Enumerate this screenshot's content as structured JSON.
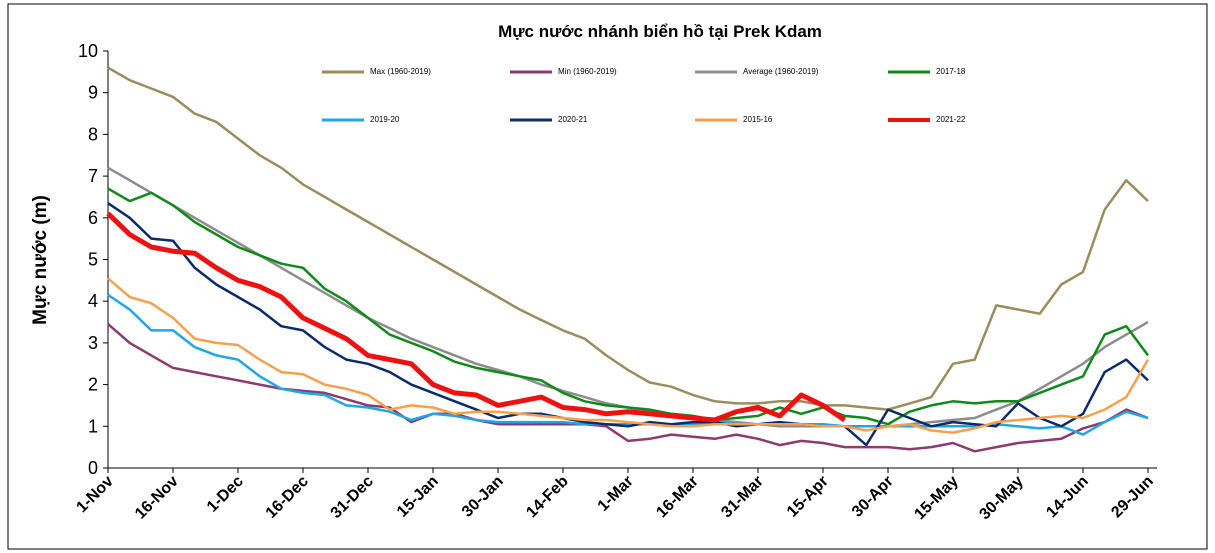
{
  "chart_data": {
    "type": "line",
    "title": "Mực nước nhánh biển hồ tại Prek Kdam",
    "y_label": "Mực nước (m)",
    "categories": [
      "1-Nov",
      null,
      null,
      "16-Nov",
      null,
      null,
      "1-Dec",
      null,
      null,
      "16-Dec",
      null,
      null,
      "31-Dec",
      null,
      null,
      "15-Jan",
      null,
      null,
      "30-Jan",
      null,
      null,
      "14-Feb",
      null,
      null,
      "1-Mar",
      null,
      null,
      "16-Mar",
      null,
      null,
      "31-Mar",
      null,
      null,
      "15-Apr",
      null,
      null,
      "30-Apr",
      null,
      null,
      "15-May",
      null,
      null,
      "30-May",
      null,
      null,
      "14-Jun",
      null,
      null,
      "29-Jun"
    ],
    "ylim": [
      0,
      10
    ],
    "yticks": [
      0,
      1,
      2,
      3,
      4,
      5,
      6,
      7,
      8,
      9,
      10
    ],
    "grid": false,
    "series": [
      {
        "name": "Max (1960-2019)",
        "color": "#9b8d5c",
        "values": [
          9.6,
          9.3,
          9.1,
          8.9,
          8.5,
          8.3,
          7.9,
          7.5,
          7.2,
          6.8,
          6.5,
          6.2,
          5.9,
          5.6,
          5.3,
          5.0,
          4.7,
          4.4,
          4.1,
          3.8,
          3.55,
          3.3,
          3.1,
          2.7,
          2.35,
          2.05,
          1.95,
          1.75,
          1.6,
          1.55,
          1.55,
          1.6,
          1.6,
          1.5,
          1.5,
          1.45,
          1.4,
          1.55,
          1.7,
          2.5,
          2.6,
          3.9,
          3.8,
          3.7,
          4.4,
          4.7,
          6.2,
          6.9,
          6.4
        ]
      },
      {
        "name": "Min (1960-2019)",
        "color": "#8e3a6e",
        "values": [
          3.45,
          3.0,
          2.7,
          2.4,
          2.3,
          2.2,
          2.1,
          2.0,
          1.9,
          1.85,
          1.8,
          1.65,
          1.5,
          1.45,
          1.1,
          1.3,
          1.3,
          1.15,
          1.05,
          1.05,
          1.05,
          1.05,
          1.05,
          1.0,
          0.65,
          0.7,
          0.8,
          0.75,
          0.7,
          0.8,
          0.7,
          0.55,
          0.65,
          0.6,
          0.5,
          0.5,
          0.5,
          0.45,
          0.5,
          0.6,
          0.4,
          0.5,
          0.6,
          0.65,
          0.7,
          0.95,
          1.1,
          1.4,
          1.2
        ]
      },
      {
        "name": "Average (1960-2019)",
        "color": "#8c8c8c",
        "values": [
          7.2,
          6.9,
          6.6,
          6.3,
          6.0,
          5.7,
          5.4,
          5.1,
          4.8,
          4.5,
          4.2,
          3.9,
          3.6,
          3.35,
          3.1,
          2.9,
          2.7,
          2.5,
          2.35,
          2.2,
          2.0,
          1.85,
          1.7,
          1.55,
          1.45,
          1.35,
          1.25,
          1.2,
          1.15,
          1.1,
          1.05,
          1.0,
          1.0,
          1.0,
          1.0,
          1.0,
          1.0,
          1.05,
          1.1,
          1.15,
          1.2,
          1.4,
          1.6,
          1.9,
          2.2,
          2.5,
          2.9,
          3.2,
          3.5
        ]
      },
      {
        "name": "2017-18",
        "color": "#108a1a",
        "values": [
          6.7,
          6.4,
          6.6,
          6.3,
          5.9,
          5.6,
          5.3,
          5.1,
          4.9,
          4.8,
          4.3,
          4.0,
          3.6,
          3.2,
          3.0,
          2.8,
          2.55,
          2.4,
          2.3,
          2.2,
          2.1,
          1.8,
          1.6,
          1.5,
          1.45,
          1.4,
          1.3,
          1.25,
          1.15,
          1.2,
          1.25,
          1.45,
          1.3,
          1.45,
          1.25,
          1.2,
          1.05,
          1.35,
          1.5,
          1.6,
          1.55,
          1.6,
          1.6,
          1.8,
          2.0,
          2.2,
          3.2,
          3.4,
          2.7
        ]
      },
      {
        "name": "2019-20",
        "color": "#1ea7e6",
        "values": [
          4.15,
          3.8,
          3.3,
          3.3,
          2.9,
          2.7,
          2.6,
          2.2,
          1.9,
          1.8,
          1.75,
          1.5,
          1.45,
          1.35,
          1.15,
          1.3,
          1.25,
          1.15,
          1.1,
          1.1,
          1.1,
          1.1,
          1.05,
          1.05,
          1.05,
          1.05,
          1.05,
          1.05,
          1.1,
          1.05,
          1.05,
          1.05,
          1.05,
          1.05,
          1.0,
          1.0,
          1.0,
          1.0,
          1.0,
          1.0,
          1.0,
          1.05,
          1.0,
          0.95,
          1.0,
          0.8,
          1.1,
          1.35,
          1.2
        ]
      },
      {
        "name": "2020-21",
        "color": "#0c2a6e",
        "values": [
          6.35,
          6.0,
          5.5,
          5.45,
          4.8,
          4.4,
          4.1,
          3.8,
          3.4,
          3.3,
          2.9,
          2.6,
          2.5,
          2.3,
          2.0,
          1.8,
          1.6,
          1.4,
          1.2,
          1.3,
          1.3,
          1.2,
          1.1,
          1.05,
          1.0,
          1.1,
          1.05,
          1.1,
          1.1,
          1.0,
          1.05,
          1.1,
          1.05,
          1.0,
          1.0,
          0.55,
          1.4,
          1.2,
          1.0,
          1.1,
          1.05,
          1.0,
          1.55,
          1.2,
          1.0,
          1.3,
          2.3,
          2.6,
          2.1
        ]
      },
      {
        "name": "2015-16",
        "color": "#f7a04c",
        "values": [
          4.55,
          4.1,
          3.95,
          3.6,
          3.1,
          3.0,
          2.95,
          2.6,
          2.3,
          2.25,
          2.0,
          1.9,
          1.75,
          1.4,
          1.5,
          1.45,
          1.3,
          1.35,
          1.35,
          1.3,
          1.25,
          1.2,
          1.15,
          1.15,
          1.1,
          1.05,
          1.0,
          1.0,
          1.05,
          1.05,
          1.05,
          1.05,
          1.05,
          1.0,
          1.0,
          0.9,
          1.0,
          1.05,
          0.9,
          0.85,
          0.95,
          1.1,
          1.15,
          1.2,
          1.25,
          1.2,
          1.4,
          1.7,
          2.6
        ]
      },
      {
        "name": "2021-22",
        "color": "#ee1111",
        "values": [
          6.1,
          5.6,
          5.3,
          5.2,
          5.15,
          4.8,
          4.5,
          4.35,
          4.1,
          3.6,
          3.35,
          3.1,
          2.7,
          2.6,
          2.5,
          2.0,
          1.8,
          1.75,
          1.5,
          1.6,
          1.7,
          1.45,
          1.4,
          1.3,
          1.35,
          1.3,
          1.25,
          1.2,
          1.15,
          1.35,
          1.45,
          1.25,
          1.75,
          1.5,
          1.15,
          null,
          null,
          null,
          null,
          null,
          null,
          null,
          null,
          null,
          null,
          null,
          null,
          null,
          null
        ]
      }
    ]
  }
}
